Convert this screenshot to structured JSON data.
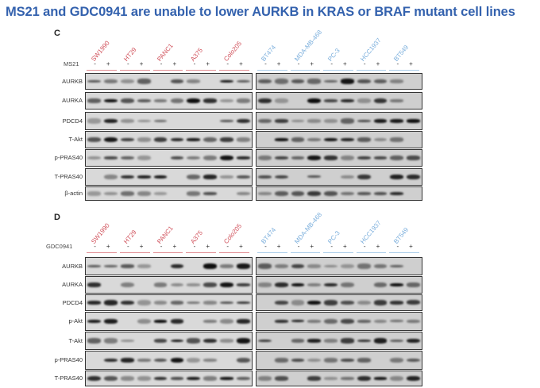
{
  "title": "MS21 and GDC0941 are unable to lower AURKB in KRAS or BRAF mutant cell lines",
  "colors": {
    "title": "#3462ae",
    "kras_braf_mutant": "#d0505a",
    "other": "#7aaedc"
  },
  "cell_lines_red": [
    "SW1990",
    "HT29",
    "PANC1",
    "A375",
    "Colo205"
  ],
  "cell_lines_blue": [
    "BT474",
    "MDA-MB-468",
    "PC-3",
    "HCC1937",
    "BT549"
  ],
  "signs": [
    "-",
    "+"
  ],
  "panels": [
    {
      "letter": "C",
      "treatment": "MS21",
      "rows": [
        "AURKB",
        "AURKA",
        "PDCD4",
        "T-Akt",
        "p-PRAS40",
        "T-PRAS40",
        "β-actin"
      ]
    },
    {
      "letter": "D",
      "treatment": "GDC0941",
      "rows": [
        "AURKB",
        "AURKA",
        "PDCD4",
        "p-Akt",
        "T-Akt",
        "p-PRAS40",
        "T-PRAS40"
      ]
    }
  ]
}
